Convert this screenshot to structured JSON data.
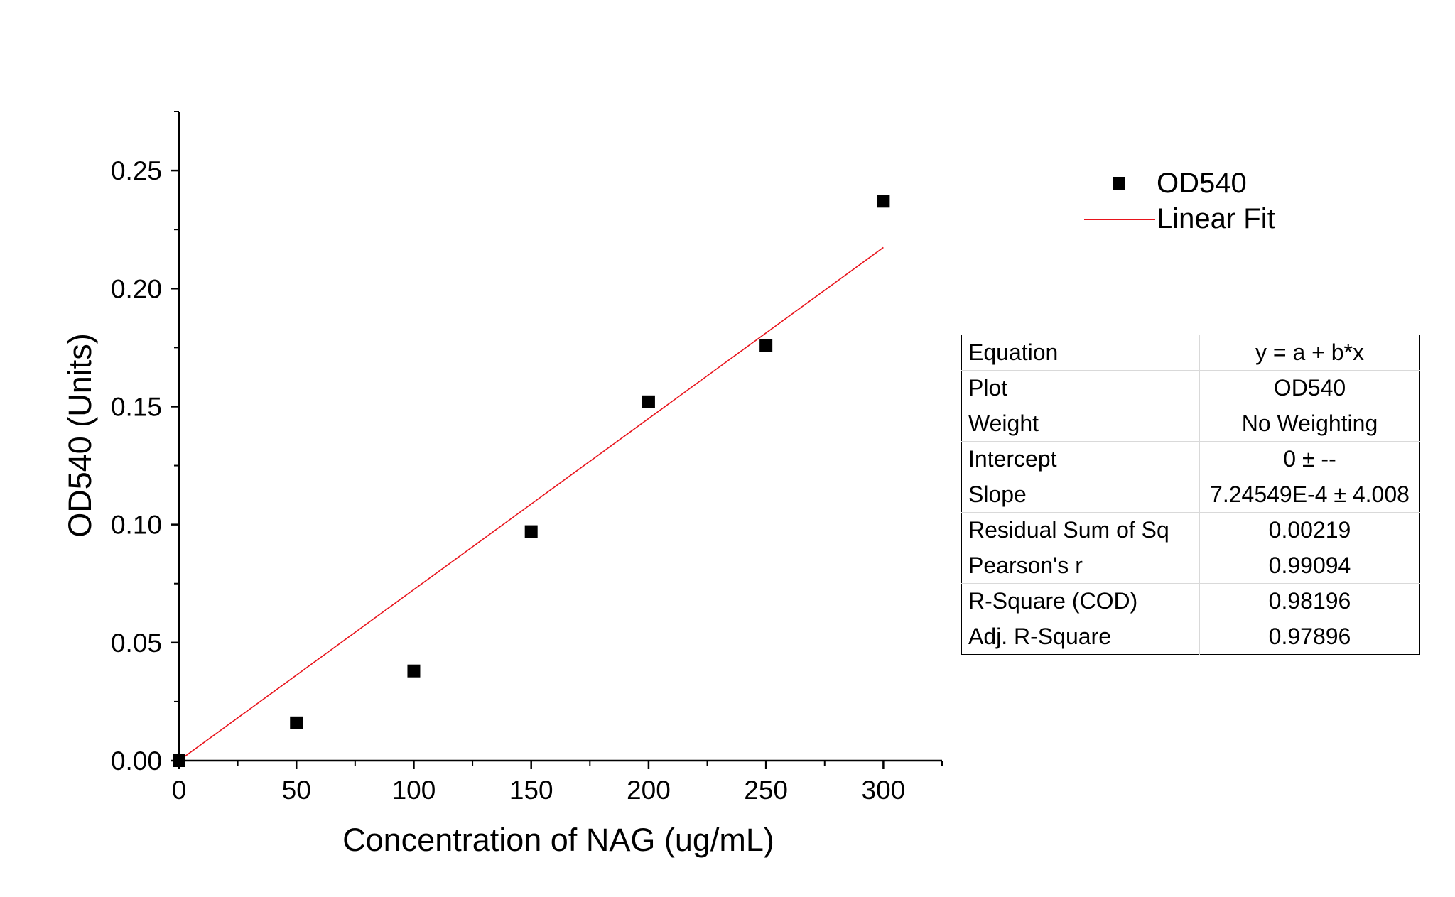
{
  "chart_data": {
    "type": "scatter",
    "xlabel": "Concentration of NAG (ug/mL)",
    "ylabel": "OD540 (Units)",
    "xlim": [
      0,
      325
    ],
    "ylim": [
      0,
      0.275
    ],
    "x_ticks": [
      "0",
      "50",
      "100",
      "150",
      "200",
      "250",
      "300"
    ],
    "y_ticks": [
      "0.00",
      "0.05",
      "0.10",
      "0.15",
      "0.20",
      "0.25"
    ],
    "grid": false,
    "legend_position": "top-right",
    "series": [
      {
        "name": "OD540",
        "type": "scatter",
        "marker": "square",
        "color": "#000000",
        "x": [
          0,
          50,
          100,
          150,
          200,
          250,
          300
        ],
        "y": [
          0.0,
          0.016,
          0.038,
          0.097,
          0.152,
          0.176,
          0.237
        ]
      },
      {
        "name": "Linear Fit",
        "type": "line",
        "color": "#e8141c",
        "x": [
          0,
          300
        ],
        "y": [
          0.0,
          0.2174
        ]
      }
    ],
    "fit_table": [
      {
        "key": "Equation",
        "value": "y = a + b*x"
      },
      {
        "key": "Plot",
        "value": "OD540"
      },
      {
        "key": "Weight",
        "value": "No Weighting"
      },
      {
        "key": "Intercept",
        "value": "0 ± --"
      },
      {
        "key": "Slope",
        "value": "7.24549E-4 ± 4.008"
      },
      {
        "key": "Residual Sum of Sq",
        "value": "0.00219"
      },
      {
        "key": "Pearson's r",
        "value": "0.99094"
      },
      {
        "key": "R-Square (COD)",
        "value": "0.98196"
      },
      {
        "key": "Adj. R-Square",
        "value": "0.97896"
      }
    ]
  }
}
